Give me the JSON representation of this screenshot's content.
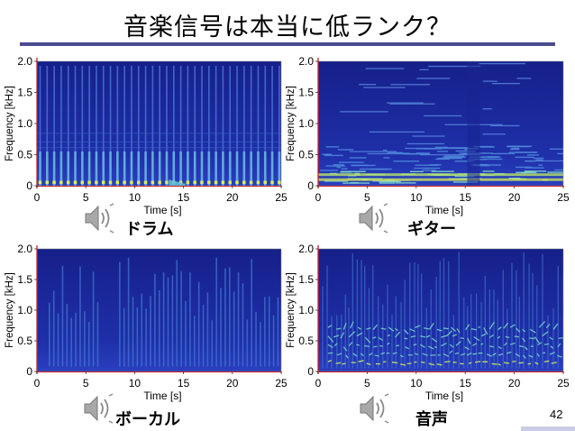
{
  "slide": {
    "title": "音楽信号は本当に低ランク？",
    "page_number": "42",
    "accent_color": "#4b4b8f"
  },
  "chart_data": [
    {
      "type": "heatmap",
      "label": "ドラム",
      "xlabel": "Time [s]",
      "ylabel": "Frequency [kHz]",
      "xlim": [
        0,
        25
      ],
      "ylim": [
        0,
        2.0
      ],
      "xticks": [
        "0",
        "5",
        "10",
        "15",
        "20",
        "25"
      ],
      "yticks": [
        "0",
        "0.5",
        "1.0",
        "1.5",
        "2.0"
      ],
      "icon": "speaker-icon"
    },
    {
      "type": "heatmap",
      "label": "ギター",
      "xlabel": "Time [s]",
      "ylabel": "Frequency [kHz]",
      "xlim": [
        0,
        25
      ],
      "ylim": [
        0,
        2.0
      ],
      "xticks": [
        "0",
        "5",
        "10",
        "15",
        "20",
        "25"
      ],
      "yticks": [
        "0",
        "0.5",
        "1.0",
        "1.5",
        "2.0"
      ],
      "icon": "speaker-icon"
    },
    {
      "type": "heatmap",
      "label": "ボーカル",
      "xlabel": "Time [s]",
      "ylabel": "Frequency [kHz]",
      "xlim": [
        0,
        25
      ],
      "ylim": [
        0,
        2.0
      ],
      "xticks": [
        "0",
        "5",
        "10",
        "15",
        "20",
        "25"
      ],
      "yticks": [
        "0",
        "0.5",
        "1.0",
        "1.5",
        "2.0"
      ],
      "icon": "speaker-icon"
    },
    {
      "type": "heatmap",
      "label": "音声",
      "xlabel": "Time [s]",
      "ylabel": "Frequency [kHz]",
      "xlim": [
        0,
        25
      ],
      "ylim": [
        0,
        2.0
      ],
      "xticks": [
        "0",
        "5",
        "10",
        "15",
        "20",
        "25"
      ],
      "yticks": [
        "0",
        "0.5",
        "1.0",
        "1.5",
        "2.0"
      ],
      "icon": "speaker-icon"
    }
  ]
}
